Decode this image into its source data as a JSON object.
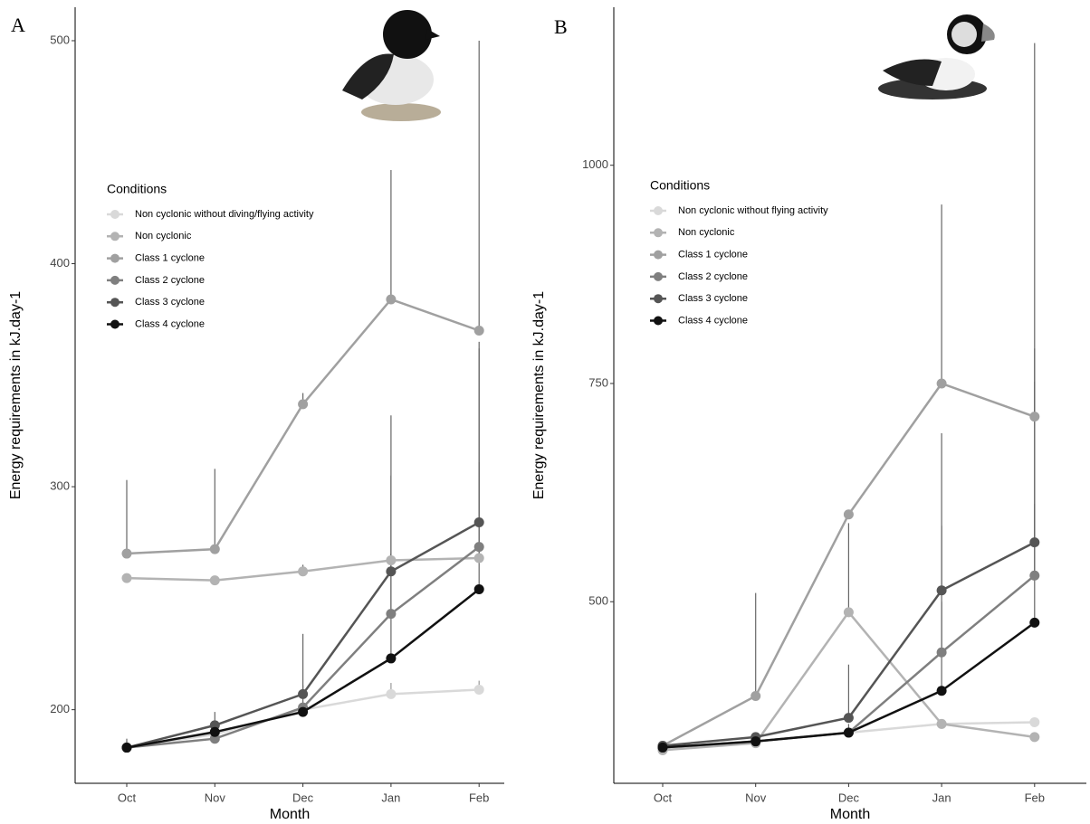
{
  "chart_data": [
    {
      "type": "line",
      "label": "A",
      "x_label": "Month",
      "y_label": "Energy requirements in kJ.day-1",
      "legend_title": "Conditions",
      "categories": [
        "Oct",
        "Nov",
        "Dec",
        "Jan",
        "Feb"
      ],
      "ylim": [
        167,
        515
      ],
      "yticks": [
        200,
        300,
        400,
        500
      ],
      "series": [
        {
          "name": "Non cyclonic without diving/flying activity",
          "color": "#d9d9d9",
          "values": [
            183,
            189,
            200,
            207,
            209
          ],
          "errors": [
            2,
            2,
            2,
            5,
            4
          ]
        },
        {
          "name": "Non cyclonic",
          "color": "#b3b3b3",
          "values": [
            259,
            258,
            262,
            267,
            268
          ],
          "errors": [
            2,
            2,
            3,
            3,
            3
          ]
        },
        {
          "name": "Class 1 cyclone",
          "color": "#a0a0a0",
          "values": [
            270,
            272,
            337,
            384,
            370
          ],
          "errors": [
            33,
            36,
            5,
            58,
            130
          ]
        },
        {
          "name": "Class 2 cyclone",
          "color": "#7f7f7f",
          "values": [
            183,
            187,
            201,
            243,
            273
          ],
          "errors": [
            3,
            6,
            10,
            27,
            38
          ]
        },
        {
          "name": "Class 3 cyclone",
          "color": "#555555",
          "values": [
            183,
            193,
            207,
            262,
            284
          ],
          "errors": [
            4,
            6,
            27,
            70,
            81
          ]
        },
        {
          "name": "Class 4 cyclone",
          "color": "#111111",
          "values": [
            183,
            190,
            199,
            223,
            254
          ],
          "errors": [
            2,
            3,
            4,
            82,
            108
          ]
        }
      ]
    },
    {
      "type": "line",
      "label": "B",
      "x_label": "Month",
      "y_label": "Energy requirements in kJ.day-1",
      "legend_title": "Conditions",
      "categories": [
        "Oct",
        "Nov",
        "Dec",
        "Jan",
        "Feb"
      ],
      "ylim": [
        292,
        1181
      ],
      "yticks": [
        500,
        750,
        1000
      ],
      "series": [
        {
          "name": "Non cyclonic without flying activity",
          "color": "#d9d9d9",
          "values": [
            330,
            340,
            350,
            360,
            362
          ],
          "errors": [
            3,
            3,
            3,
            3,
            3
          ]
        },
        {
          "name": "Non cyclonic",
          "color": "#b3b3b3",
          "values": [
            330,
            338,
            488,
            360,
            345
          ],
          "errors": [
            3,
            3,
            102,
            3,
            3
          ]
        },
        {
          "name": "Class 1 cyclone",
          "color": "#a0a0a0",
          "values": [
            335,
            392,
            600,
            750,
            712
          ],
          "errors": [
            5,
            118,
            5,
            205,
            428
          ]
        },
        {
          "name": "Class 2 cyclone",
          "color": "#7f7f7f",
          "values": [
            333,
            340,
            350,
            442,
            530
          ],
          "errors": [
            3,
            4,
            10,
            58,
            260
          ]
        },
        {
          "name": "Class 3 cyclone",
          "color": "#555555",
          "values": [
            335,
            345,
            367,
            513,
            568
          ],
          "errors": [
            5,
            4,
            61,
            180,
            184
          ]
        },
        {
          "name": "Class 4 cyclone",
          "color": "#111111",
          "values": [
            333,
            340,
            350,
            398,
            476
          ],
          "errors": [
            3,
            3,
            3,
            189,
            136
          ]
        }
      ]
    }
  ]
}
